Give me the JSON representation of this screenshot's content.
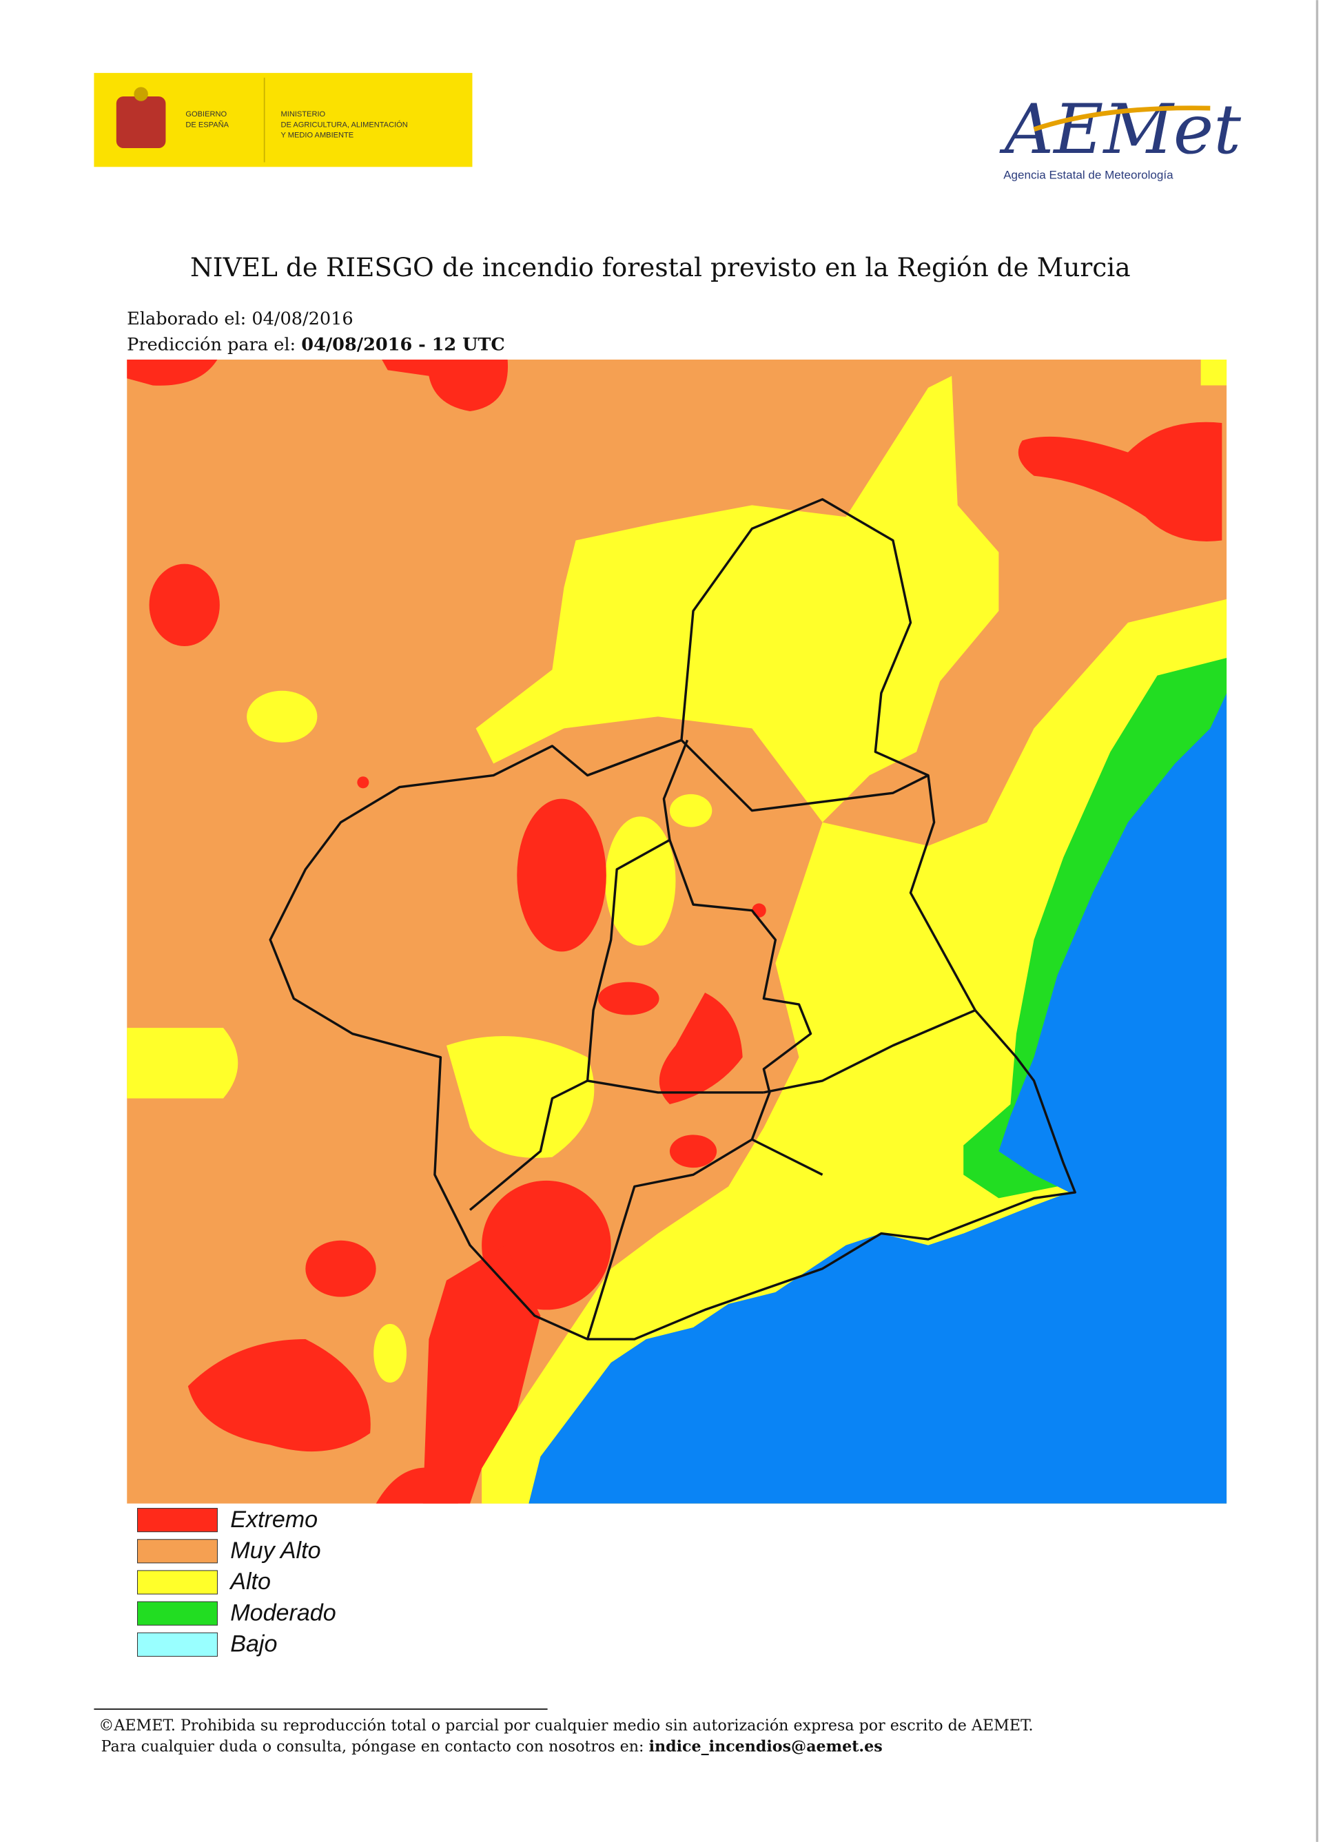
{
  "header": {
    "government": [
      "GOBIERNO",
      "DE ESPAÑA"
    ],
    "ministry": [
      "MINISTERIO",
      "DE AGRICULTURA, ALIMENTACIÓN",
      "Y MEDIO AMBIENTE"
    ],
    "agency_logo": "AEMet",
    "agency_name": "Agencia Estatal de Meteorología"
  },
  "title": "NIVEL de RIESGO de incendio forestal previsto en la Región de Murcia",
  "issued": "Elaborado el: 04/08/2016",
  "forecast": {
    "label": "Predicción para el: ",
    "value": "04/08/2016 - 12 UTC"
  },
  "legend": [
    {
      "label": "Extremo",
      "color": "#ff2a1a"
    },
    {
      "label": "Muy Alto",
      "color": "#f5a052"
    },
    {
      "label": "Alto",
      "color": "#ffff2a"
    },
    {
      "label": "Moderado",
      "color": "#22dd22"
    },
    {
      "label": "Bajo",
      "color": "#99ffff"
    }
  ],
  "footer": {
    "copyright": "©AEMET. Prohibida su reproducción total o parcial por cualquier medio sin autorización expresa por escrito de AEMET.",
    "contact": "Para cualquier duda o consulta, póngase en contacto con nosotros en: ",
    "email": "indice_incendios@aemet.es"
  }
}
